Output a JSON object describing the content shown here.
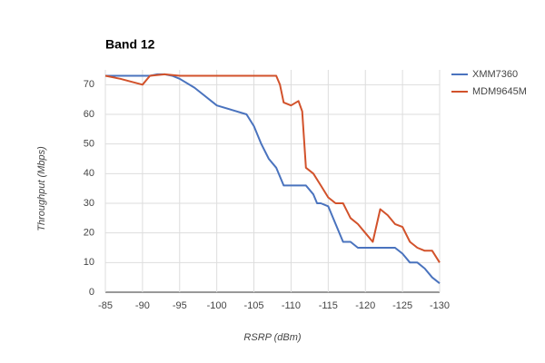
{
  "chart_data": {
    "type": "line",
    "title": "Band 12",
    "x_label": "RSRP (dBm)",
    "y_label": "Throughput (Mbps)",
    "xlim": [
      -85,
      -130
    ],
    "xticks": [
      -85,
      -90,
      -95,
      -100,
      -105,
      -110,
      -115,
      -120,
      -125,
      -130
    ],
    "ylim": [
      0,
      75
    ],
    "yticks": [
      0,
      10,
      20,
      30,
      40,
      50,
      60,
      70
    ],
    "grid": true,
    "legend": "right",
    "series": [
      {
        "name": "XMM7360",
        "color": "#4a73be",
        "x": [
          -85,
          -90,
          -91,
          -92,
          -93,
          -94,
          -95,
          -97,
          -98,
          -100,
          -102,
          -104,
          -105,
          -106,
          -107,
          -108,
          -109,
          -110,
          -111,
          -112,
          -113,
          -113.5,
          -114,
          -115,
          -116,
          -117,
          -118,
          -119,
          -120,
          -121,
          -122,
          -123,
          -124,
          -125,
          -126,
          -127,
          -128,
          -129,
          -130
        ],
        "values": [
          73,
          73,
          73,
          73.5,
          73.5,
          73,
          72,
          69,
          67,
          63,
          61.5,
          60,
          56,
          50,
          45,
          42,
          36,
          36,
          36,
          36,
          33,
          30,
          30,
          29,
          23,
          17,
          17,
          15,
          15,
          15,
          15,
          15,
          15,
          13,
          10,
          10,
          8,
          5,
          3
        ]
      },
      {
        "name": "MDM9645M",
        "color": "#d2522b",
        "x": [
          -85,
          -87,
          -90,
          -91,
          -93,
          -95,
          -100,
          -105,
          -108,
          -108.5,
          -109,
          -110,
          -111,
          -111.5,
          -112,
          -113,
          -114,
          -115,
          -116,
          -117,
          -118,
          -119,
          -120,
          -121,
          -122,
          -123,
          -124,
          -125,
          -126,
          -127,
          -128,
          -129,
          -130
        ],
        "values": [
          73,
          72,
          70,
          73,
          73.5,
          73,
          73,
          73,
          73,
          70,
          64,
          63,
          64.5,
          61,
          42,
          40,
          36,
          32,
          30,
          30,
          25,
          23,
          20,
          17,
          28,
          26,
          23,
          22,
          17,
          15,
          14,
          14,
          10
        ]
      }
    ]
  }
}
